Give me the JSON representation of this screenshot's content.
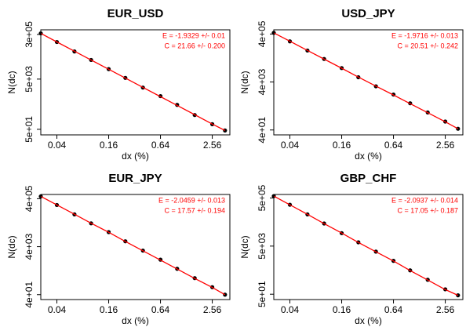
{
  "chart_data": [
    {
      "type": "line",
      "title": "EUR_USD",
      "xlabel": "dx (%)",
      "ylabel": "N(dc)",
      "annotations": [
        "E = -1.9329 +/- 0.01",
        "C = 21.66 +/- 0.200"
      ],
      "x": [
        0.026,
        0.04,
        0.064,
        0.1,
        0.16,
        0.25,
        0.4,
        0.64,
        1,
        1.6,
        2.56,
        3.6
      ],
      "series": [
        {
          "color": "#000000",
          "mode": "points",
          "values": [
            331000,
            150000,
            63000,
            29000,
            12500,
            5600,
            2300,
            1050,
            470,
            185,
            80,
            45
          ]
        },
        {
          "color": "#ff0000",
          "mode": "line",
          "values": [
            331000,
            151000,
            64600,
            28800,
            12300,
            5500,
            2340,
            1000,
            447,
            191,
            81,
            45
          ]
        }
      ],
      "xscale": "log",
      "yscale": "log",
      "xlim": [
        0.026,
        4.1
      ],
      "ylim": [
        30,
        460000
      ],
      "xticks": [
        0.04,
        0.16,
        0.64,
        2.56
      ],
      "yticks": [
        {
          "value": 50,
          "label": "5e+01"
        },
        {
          "value": 5000,
          "label": "5e+03"
        },
        {
          "value": 300000,
          "label": "3e+05"
        }
      ]
    },
    {
      "type": "line",
      "title": "USD_JPY",
      "xlabel": "dx (%)",
      "ylabel": "N(dc)",
      "annotations": [
        "E = -1.9716 +/- 0.013",
        "C = 20.51 +/- 0.242"
      ],
      "x": [
        0.026,
        0.04,
        0.064,
        0.1,
        0.16,
        0.25,
        0.4,
        0.64,
        1,
        1.6,
        2.56,
        3.6
      ],
      "series": [
        {
          "color": "#000000",
          "mode": "points",
          "values": [
            447000,
            198000,
            82000,
            36500,
            15200,
            6300,
            2650,
            1200,
            520,
            215,
            90,
            45
          ]
        },
        {
          "color": "#ff0000",
          "mode": "line",
          "values": [
            447000,
            200000,
            83000,
            36000,
            15000,
            6400,
            2700,
            1150,
            500,
            210,
            88,
            45
          ]
        }
      ],
      "xscale": "log",
      "yscale": "log",
      "xlim": [
        0.026,
        4.1
      ],
      "ylim": [
        25,
        600000
      ],
      "xticks": [
        0.04,
        0.16,
        0.64,
        2.56
      ],
      "yticks": [
        {
          "value": 40,
          "label": "4e+01"
        },
        {
          "value": 4000,
          "label": "4e+03"
        },
        {
          "value": 400000,
          "label": "4e+05"
        }
      ]
    },
    {
      "type": "line",
      "title": "EUR_JPY",
      "xlabel": "dx (%)",
      "ylabel": "N(dc)",
      "annotations": [
        "E = -2.0459 +/- 0.013",
        "C = 17.57 +/- 0.194"
      ],
      "x": [
        0.026,
        0.04,
        0.064,
        0.1,
        0.16,
        0.25,
        0.4,
        0.64,
        1,
        1.6,
        2.56,
        3.6
      ],
      "series": [
        {
          "color": "#000000",
          "mode": "points",
          "values": [
            500000,
            218000,
            89000,
            37500,
            16200,
            6700,
            2750,
            1150,
            480,
            195,
            82,
            40
          ]
        },
        {
          "color": "#ff0000",
          "mode": "line",
          "values": [
            500000,
            220000,
            90000,
            38000,
            16000,
            6600,
            2700,
            1100,
            470,
            190,
            80,
            40
          ]
        }
      ],
      "xscale": "log",
      "yscale": "log",
      "xlim": [
        0.026,
        4.1
      ],
      "ylim": [
        25,
        600000
      ],
      "xticks": [
        0.04,
        0.16,
        0.64,
        2.56
      ],
      "yticks": [
        {
          "value": 40,
          "label": "4e+01"
        },
        {
          "value": 4000,
          "label": "4e+03"
        },
        {
          "value": 400000,
          "label": "4e+05"
        }
      ]
    },
    {
      "type": "line",
      "title": "GBP_CHF",
      "xlabel": "dx (%)",
      "ylabel": "N(dc)",
      "annotations": [
        "E = -2.0937 +/- 0.014",
        "C = 17.05 +/- 0.187"
      ],
      "x": [
        0.026,
        0.04,
        0.064,
        0.1,
        0.16,
        0.25,
        0.4,
        0.64,
        1,
        1.6,
        2.56,
        3.6
      ],
      "series": [
        {
          "color": "#000000",
          "mode": "points",
          "values": [
            600000,
            262000,
            104000,
            43500,
            17300,
            7200,
            2950,
            1220,
            490,
            200,
            80,
            45
          ]
        },
        {
          "color": "#ff0000",
          "mode": "line",
          "values": [
            600000,
            260000,
            105000,
            43000,
            17500,
            7100,
            2900,
            1200,
            480,
            195,
            78,
            45
          ]
        }
      ],
      "xscale": "log",
      "yscale": "log",
      "xlim": [
        0.026,
        4.1
      ],
      "ylim": [
        30,
        700000
      ],
      "xticks": [
        0.04,
        0.16,
        0.64,
        2.56
      ],
      "yticks": [
        {
          "value": 50,
          "label": "5e+01"
        },
        {
          "value": 5000,
          "label": "5e+03"
        },
        {
          "value": 500000,
          "label": "5e+05"
        }
      ]
    }
  ]
}
